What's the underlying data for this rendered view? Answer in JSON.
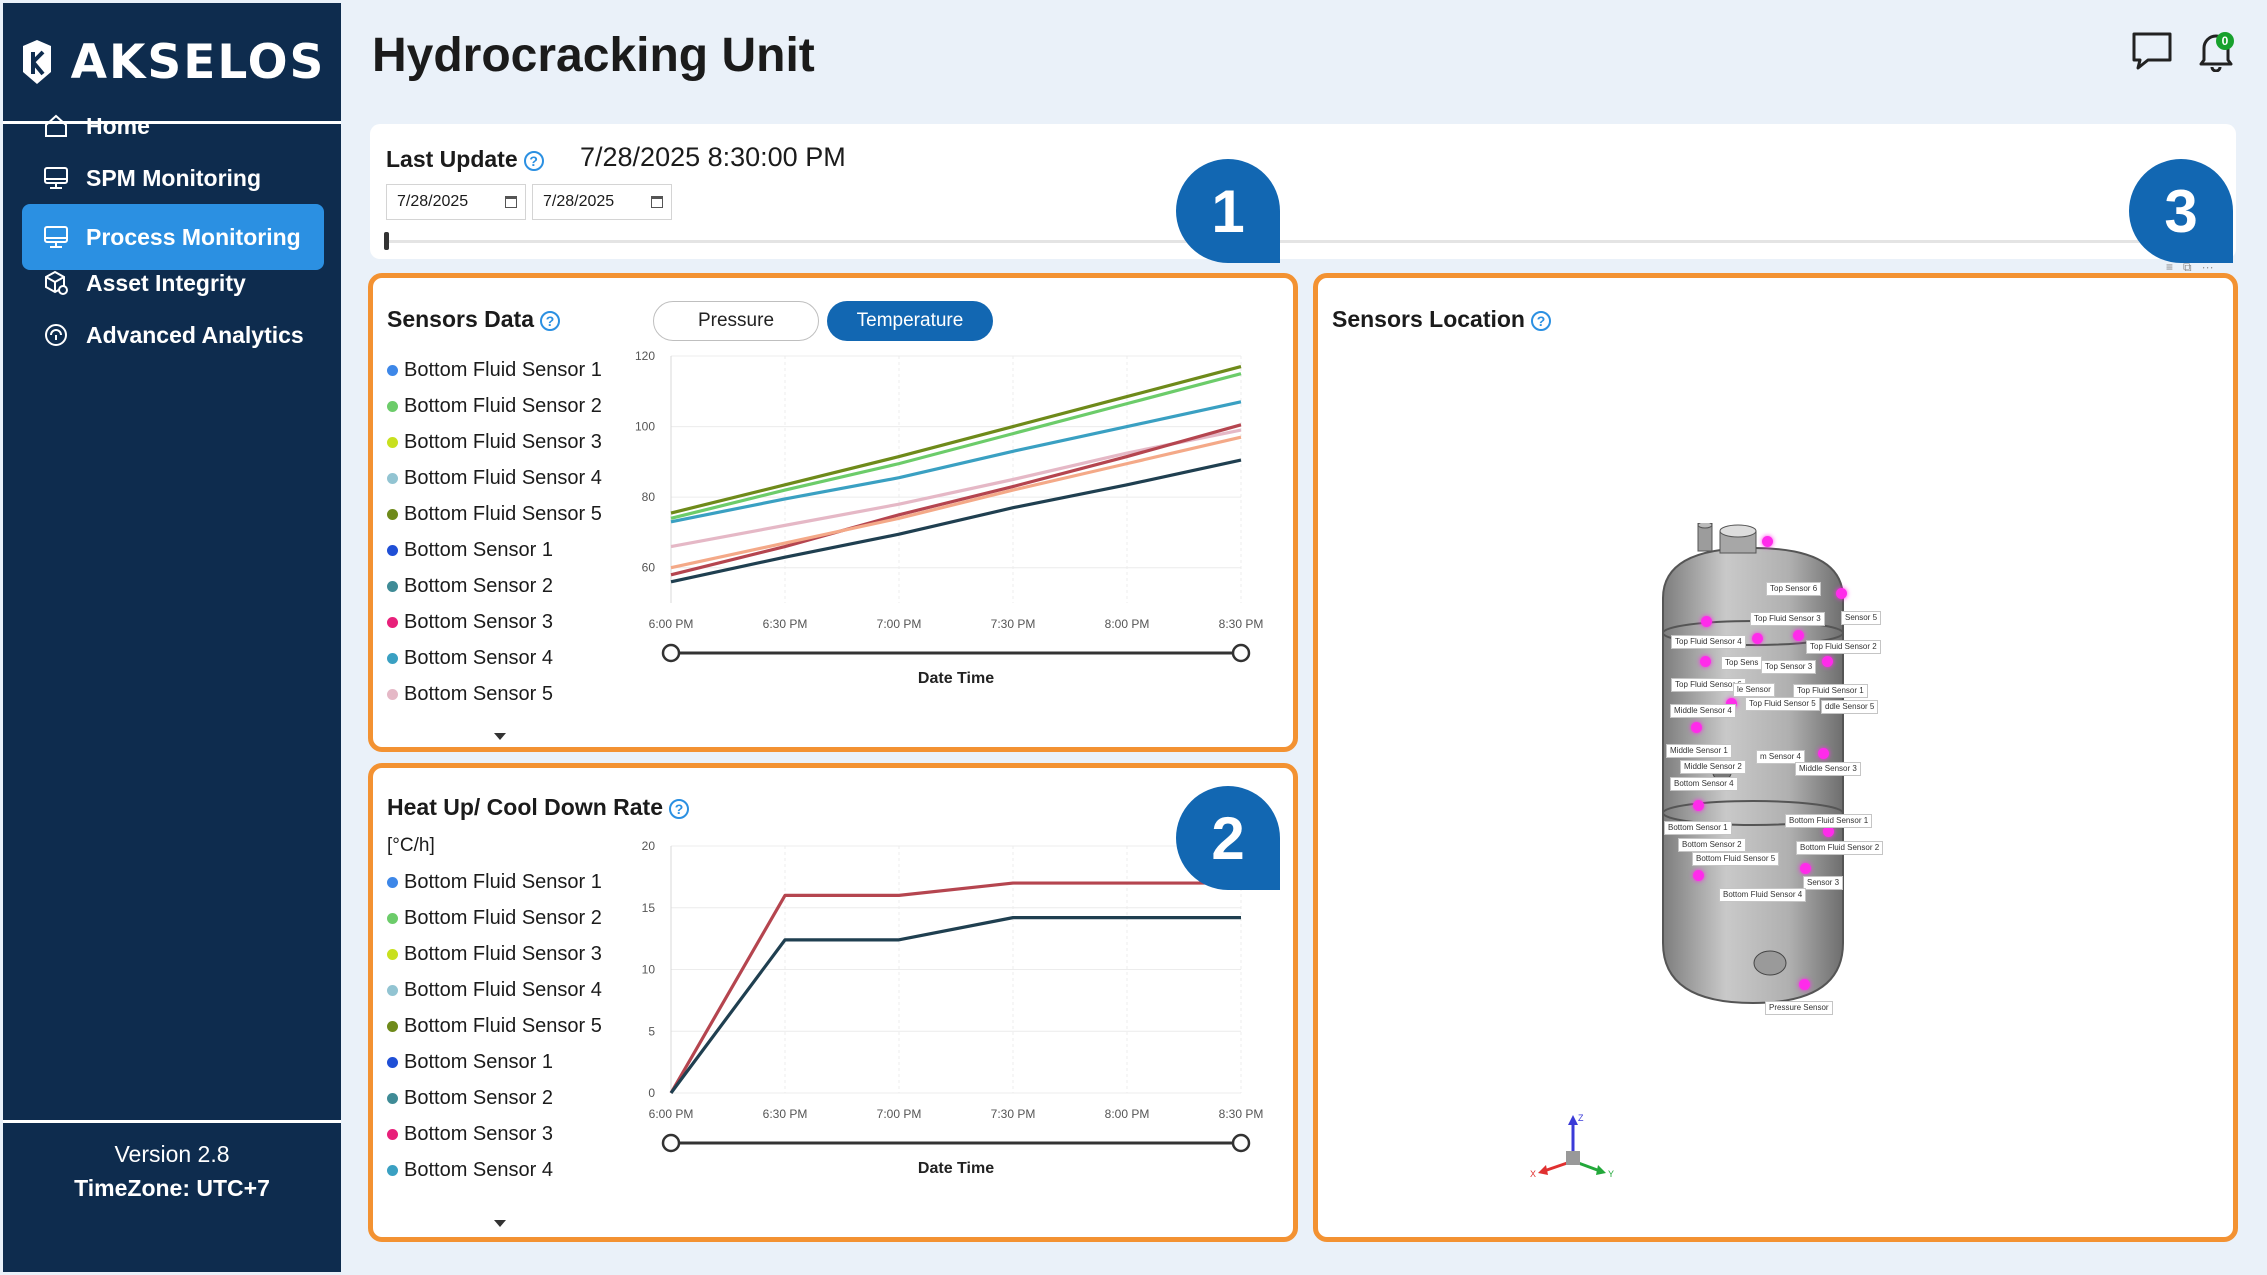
{
  "brand": {
    "name": "AKSELOS"
  },
  "nav": [
    {
      "label": "Home",
      "icon": "home-icon",
      "active": false
    },
    {
      "label": "SPM Monitoring",
      "icon": "monitor-icon",
      "active": false
    },
    {
      "label": "Process Monitoring",
      "icon": "monitor-icon",
      "active": true
    },
    {
      "label": "Asset Integrity",
      "icon": "cube-search-icon",
      "active": false
    },
    {
      "label": "Advanced Analytics",
      "icon": "analytics-icon",
      "active": false
    }
  ],
  "footer": {
    "version": "Version 2.8",
    "timezone": "TimeZone: UTC+7"
  },
  "page": {
    "title": "Hydrocracking Unit"
  },
  "header": {
    "notification_count": "0"
  },
  "update": {
    "label": "Last Update",
    "value": "7/28/2025 8:30:00 PM",
    "date_from": "7/28/2025",
    "date_to": "7/28/2025",
    "range_fraction": [
      0.0,
      0.0
    ]
  },
  "callouts": [
    "1",
    "2",
    "3"
  ],
  "colors": {
    "accent": "#2b90e2",
    "sidebar": "#0e2c4e",
    "panel_border": "#f39232",
    "callout": "#1267b2",
    "toggle_active": "#1267b2",
    "sensor_marker": "#ff2bea"
  },
  "sensors_panel": {
    "title": "Sensors Data",
    "toggles": [
      {
        "label": "Pressure",
        "active": false
      },
      {
        "label": "Temperature",
        "active": true
      }
    ],
    "legend": [
      {
        "label": "Bottom Fluid Sensor 1",
        "color": "#3d87e8"
      },
      {
        "label": "Bottom Fluid Sensor 2",
        "color": "#6ccc6a"
      },
      {
        "label": "Bottom Fluid Sensor 3",
        "color": "#c8e01e"
      },
      {
        "label": "Bottom Fluid Sensor 4",
        "color": "#92c4d2"
      },
      {
        "label": "Bottom Fluid Sensor 5",
        "color": "#6e8a1a"
      },
      {
        "label": "Bottom Sensor 1",
        "color": "#1f4fd6"
      },
      {
        "label": "Bottom Sensor 2",
        "color": "#3f8b96"
      },
      {
        "label": "Bottom Sensor 3",
        "color": "#e8207a"
      },
      {
        "label": "Bottom Sensor 4",
        "color": "#3aa0c2"
      },
      {
        "label": "Bottom Sensor 5",
        "color": "#e5b8c6"
      }
    ]
  },
  "heat_panel": {
    "title": "Heat Up/ Cool Down Rate",
    "unit": "[°C/h]",
    "legend": [
      {
        "label": "Bottom Fluid Sensor 1",
        "color": "#3d87e8"
      },
      {
        "label": "Bottom Fluid Sensor 2",
        "color": "#6ccc6a"
      },
      {
        "label": "Bottom Fluid Sensor 3",
        "color": "#c8e01e"
      },
      {
        "label": "Bottom Fluid Sensor 4",
        "color": "#92c4d2"
      },
      {
        "label": "Bottom Fluid Sensor 5",
        "color": "#6e8a1a"
      },
      {
        "label": "Bottom Sensor 1",
        "color": "#1f4fd6"
      },
      {
        "label": "Bottom Sensor 2",
        "color": "#3f8b96"
      },
      {
        "label": "Bottom Sensor 3",
        "color": "#e8207a"
      },
      {
        "label": "Bottom Sensor 4",
        "color": "#3aa0c2"
      }
    ]
  },
  "location_panel": {
    "title": "Sensors Location",
    "tags": [
      "Top Sensor 6",
      "Top Fluid Sensor 3",
      "Sensor 5",
      "Top Fluid Sensor 4",
      "Top Fluid Sensor 2",
      "Top Sens",
      "Top Sensor 3",
      "Top Fluid Sensor 6",
      "le Sensor",
      "Top Fluid Sensor 1",
      "Middle Sensor 4",
      "Top Fluid Sensor 5",
      "ddle Sensor 5",
      "Middle Sensor 1",
      "m Sensor 4",
      "Middle Sensor 2",
      "Middle Sensor 3",
      "Bottom Sensor 4",
      "Bottom Fluid Sensor 1",
      "Bottom Sensor 1",
      "Bottom Sensor 2",
      "Bottom Fluid Sensor 2",
      "Bottom Fluid Sensor 5",
      "Sensor 3",
      "Bottom Fluid Sensor 4",
      "Pressure Sensor"
    ],
    "axes": [
      "X",
      "Y",
      "Z"
    ]
  },
  "chart_data": [
    {
      "type": "line",
      "title": "Sensors Data",
      "xlabel": "Date Time",
      "ylabel": "",
      "x": [
        "6:00 PM",
        "6:30 PM",
        "7:00 PM",
        "7:30 PM",
        "8:00 PM",
        "8:30 PM"
      ],
      "ylim": [
        50,
        120
      ],
      "yticks": [
        60,
        80,
        100,
        120
      ],
      "grid": true,
      "series": [
        {
          "name": "Bottom Fluid Sensor 5",
          "color": "#6e8a1a",
          "values": [
            75.5,
            83.5,
            91.5,
            100,
            108.5,
            117
          ]
        },
        {
          "name": "Bottom Fluid Sensor 2",
          "color": "#6ccc6a",
          "values": [
            74,
            82,
            89.5,
            98,
            106.5,
            115
          ]
        },
        {
          "name": "Bottom Sensor 4",
          "color": "#3aa0c2",
          "values": [
            73,
            79.5,
            85.5,
            93,
            100,
            107
          ]
        },
        {
          "name": "Bottom Sensor 5",
          "color": "#e5b8c6",
          "values": [
            66,
            72,
            78,
            85,
            92.5,
            99
          ]
        },
        {
          "name": "Bottom Sensor 3",
          "color": "#b5454f",
          "values": [
            58,
            66,
            75,
            83,
            91.5,
            100.5
          ]
        },
        {
          "name": "Bottom Sensor 1",
          "color": "#f4a988",
          "values": [
            60,
            67,
            74,
            82,
            89.5,
            97
          ]
        },
        {
          "name": "Bottom Sensor 2",
          "color": "#1f3f50",
          "values": [
            56,
            63,
            69.5,
            77,
            83.5,
            90.5
          ]
        }
      ]
    },
    {
      "type": "line",
      "title": "Heat Up/ Cool Down Rate",
      "xlabel": "Date Time",
      "ylabel": "[°C/h]",
      "x": [
        "6:00 PM",
        "6:30 PM",
        "7:00 PM",
        "7:30 PM",
        "8:00 PM",
        "8:30 PM"
      ],
      "ylim": [
        0,
        20
      ],
      "yticks": [
        0,
        5,
        10,
        15,
        20
      ],
      "grid": true,
      "series": [
        {
          "name": "Bottom Sensor 3",
          "color": "#b5454f",
          "values": [
            0,
            16,
            16,
            17,
            17,
            17
          ]
        },
        {
          "name": "Bottom Sensor 2",
          "color": "#1f3f50",
          "values": [
            0,
            12.4,
            12.4,
            14.2,
            14.2,
            14.2
          ]
        }
      ]
    }
  ]
}
